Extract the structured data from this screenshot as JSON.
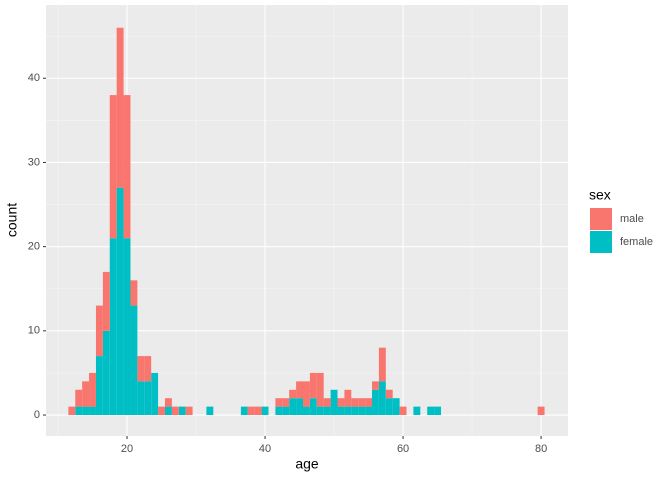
{
  "chart_data": {
    "type": "histogram",
    "xlabel": "age",
    "ylabel": "count",
    "bins": [
      11.5,
      12.5,
      13.5,
      14.5,
      15.5,
      16.5,
      17.5,
      18.5,
      19.5,
      20.5,
      21.5,
      22.5,
      23.5,
      24.5,
      25.5,
      26.5,
      27.5,
      28.5,
      29.5,
      30.5,
      31.5,
      32.5,
      33.5,
      34.5,
      35.5,
      36.5,
      37.5,
      38.5,
      39.5,
      40.5,
      41.5,
      42.5,
      43.5,
      44.5,
      45.5,
      46.5,
      47.5,
      48.5,
      49.5,
      50.5,
      51.5,
      52.5,
      53.5,
      54.5,
      55.5,
      56.5,
      57.5,
      58.5,
      59.5,
      60.5,
      61.5,
      62.5,
      63.5,
      64.5,
      65.5,
      66.5,
      67.5,
      68.5,
      69.5,
      70.5,
      71.5,
      72.5,
      73.5,
      74.5,
      75.5,
      76.5,
      77.5,
      78.5,
      79.5,
      80.5
    ],
    "series": [
      {
        "name": "male",
        "color": "#f8766d",
        "values": [
          1,
          2,
          3,
          4,
          6,
          7,
          17,
          19,
          17,
          3,
          3,
          3,
          0,
          1,
          1,
          1,
          0,
          1,
          0,
          0,
          0,
          0,
          0,
          0,
          0,
          0,
          1,
          1,
          0,
          0,
          1,
          1,
          1,
          2,
          3,
          3,
          4,
          1,
          0,
          1,
          2,
          1,
          1,
          1,
          1,
          4,
          1,
          0,
          1,
          0,
          0,
          0,
          0,
          0,
          0,
          0,
          0,
          0,
          0,
          0,
          0,
          0,
          0,
          0,
          0,
          0,
          0,
          0,
          1
        ]
      },
      {
        "name": "female",
        "color": "#00bfc4",
        "values": [
          0,
          1,
          1,
          1,
          7,
          10,
          21,
          27,
          21,
          13,
          4,
          4,
          5,
          0,
          1,
          0,
          1,
          0,
          0,
          0,
          1,
          0,
          0,
          0,
          0,
          1,
          0,
          0,
          1,
          0,
          1,
          1,
          2,
          2,
          1,
          2,
          1,
          1,
          3,
          1,
          1,
          1,
          1,
          1,
          3,
          4,
          2,
          2,
          0,
          0,
          1,
          0,
          1,
          1,
          0,
          0,
          0,
          0,
          0,
          0,
          0,
          0,
          0,
          0,
          0,
          0,
          0,
          0,
          0
        ]
      }
    ],
    "stacked": true,
    "legend_title": "sex",
    "legend": "right",
    "xlim": [
      8.26,
      83.9
    ],
    "xticks": [
      20,
      40,
      60,
      80
    ],
    "ylim": [
      -2.49,
      48.7
    ],
    "yticks": [
      0,
      10,
      20,
      30,
      40
    ],
    "grid": true
  }
}
